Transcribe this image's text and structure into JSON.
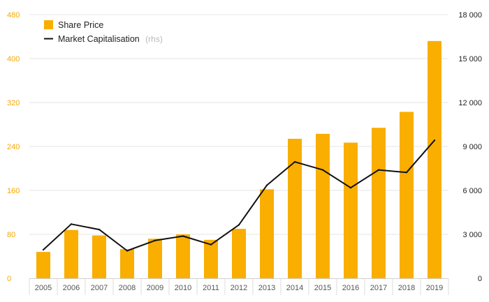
{
  "chart_data": {
    "type": "bar",
    "categories": [
      "2005",
      "2006",
      "2007",
      "2008",
      "2009",
      "2010",
      "2011",
      "2012",
      "2013",
      "2014",
      "2015",
      "2016",
      "2017",
      "2018",
      "2019"
    ],
    "series": [
      {
        "name": "Share Price",
        "type": "bar",
        "axis": "left",
        "color": "#f9ae00",
        "values": [
          48,
          88,
          78,
          53,
          72,
          80,
          70,
          90,
          162,
          254,
          263,
          247,
          274,
          303,
          432
        ]
      },
      {
        "name": "Market Capitalisation",
        "type": "line",
        "axis": "right",
        "color": "#111111",
        "values": [
          1950,
          3700,
          3330,
          1880,
          2580,
          2880,
          2300,
          3650,
          6350,
          7950,
          7400,
          6180,
          7400,
          7230,
          9420
        ]
      }
    ],
    "legend": [
      {
        "label": "Share Price",
        "note": ""
      },
      {
        "label": "Market Capitalisation",
        "note": "(rhs)"
      }
    ],
    "y_left": {
      "min": 0,
      "max": 480,
      "ticks": [
        "0",
        "80",
        "160",
        "240",
        "320",
        "400",
        "480"
      ]
    },
    "y_right": {
      "min": 0,
      "max": 18000,
      "ticks": [
        "0",
        "3 000",
        "6 000",
        "9 000",
        "12 000",
        "15 000",
        "18 000"
      ]
    },
    "grid": true,
    "legend_position": "top-left",
    "title": "",
    "xlabel": "",
    "ylabel": ""
  }
}
